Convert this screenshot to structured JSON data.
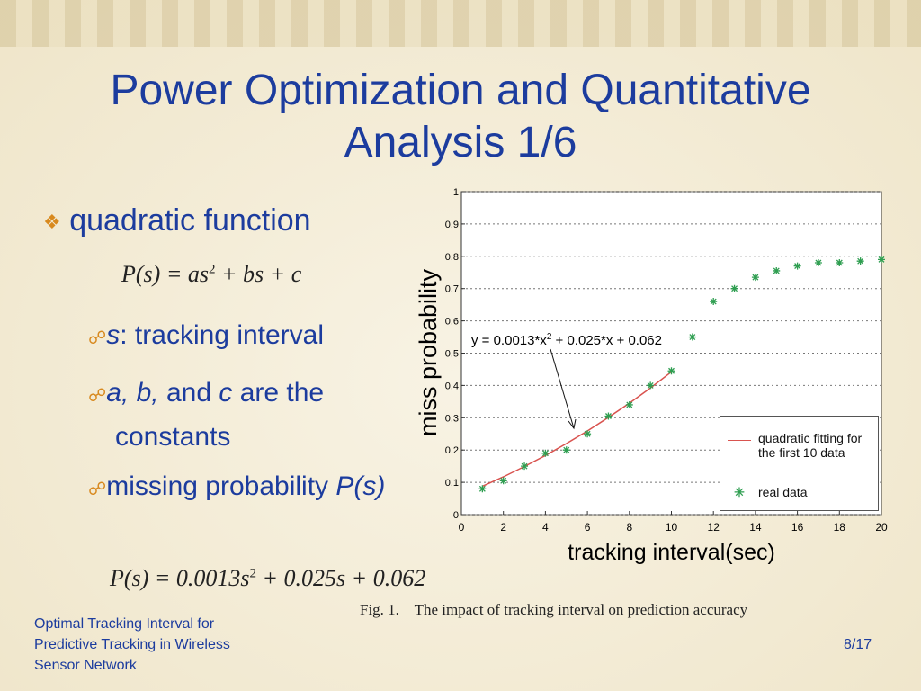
{
  "title": "Power Optimization and Quantitative Analysis 1/6",
  "bullet": "quadratic function",
  "formula1": [
    "P(s)  =  as",
    "2",
    " + bs + c"
  ],
  "sub_bullets": [
    [
      "s",
      ": tracking interval"
    ],
    [
      "a, b,",
      " and ",
      "c",
      " are the constants"
    ],
    [
      "missing probability ",
      "P(s)"
    ]
  ],
  "formula2": [
    "P(s)  =  0.0013s",
    "2",
    " + 0.025s + 0.062"
  ],
  "caption": "Fig. 1.    The impact of tracking interval on prediction accuracy",
  "footer": "Optimal Tracking Interval for Predictive Tracking in Wireless Sensor Network",
  "page": "8/17",
  "chart_data": {
    "type": "scatter",
    "xlabel": "tracking interval(sec)",
    "ylabel": "miss probability",
    "annotation": [
      "y = 0.0013*x",
      "2",
      " + 0.025*x + 0.062"
    ],
    "xlim": [
      0,
      20
    ],
    "xticks": [
      0,
      2,
      4,
      6,
      8,
      10,
      12,
      14,
      16,
      18,
      20
    ],
    "ylim": [
      0,
      1
    ],
    "yticks": [
      0,
      0.1,
      0.2,
      0.3,
      0.4,
      0.5,
      0.6,
      0.7,
      0.8,
      0.9,
      1
    ],
    "grid": true,
    "legend": "lower right",
    "series": [
      {
        "name": "quadratic fitting for the first 10 data",
        "type": "line",
        "color": "#d9534f",
        "x": [
          1,
          2,
          3,
          4,
          5,
          6,
          7,
          8,
          9,
          10
        ],
        "values": [
          0.088,
          0.117,
          0.149,
          0.183,
          0.22,
          0.259,
          0.301,
          0.345,
          0.392,
          0.442
        ]
      },
      {
        "name": "real data",
        "type": "scatter",
        "color": "#2e9e50",
        "x": [
          1,
          2,
          3,
          4,
          5,
          6,
          7,
          8,
          9,
          10,
          11,
          12,
          13,
          14,
          15,
          16,
          17,
          18,
          19,
          20
        ],
        "values": [
          0.08,
          0.105,
          0.15,
          0.19,
          0.2,
          0.25,
          0.305,
          0.34,
          0.4,
          0.445,
          0.55,
          0.66,
          0.7,
          0.735,
          0.755,
          0.77,
          0.78,
          0.78,
          0.785,
          0.79
        ]
      }
    ]
  }
}
